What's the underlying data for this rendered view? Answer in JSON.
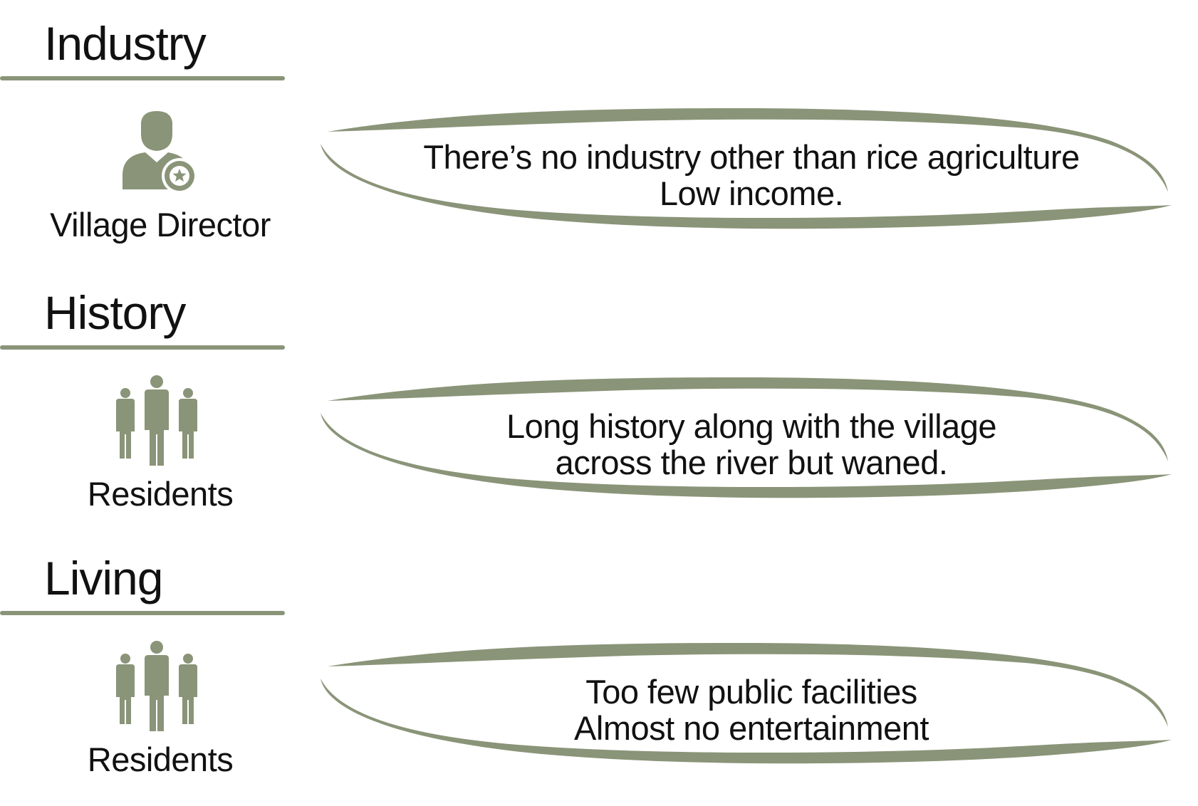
{
  "accent_color": "#8a9478",
  "sections": [
    {
      "heading": "Industry",
      "role_label": "Village Director",
      "role_icon": "village-director-icon",
      "comment_lines": [
        "There’s no industry other than rice agriculture",
        "Low income."
      ]
    },
    {
      "heading": "History",
      "role_label": "Residents",
      "role_icon": "residents-icon",
      "comment_lines": [
        "Long history along with the village",
        "across the river but waned."
      ]
    },
    {
      "heading": "Living",
      "role_label": "Residents",
      "role_icon": "residents-icon",
      "comment_lines": [
        "Too few public facilities",
        "Almost no entertainment"
      ]
    }
  ]
}
